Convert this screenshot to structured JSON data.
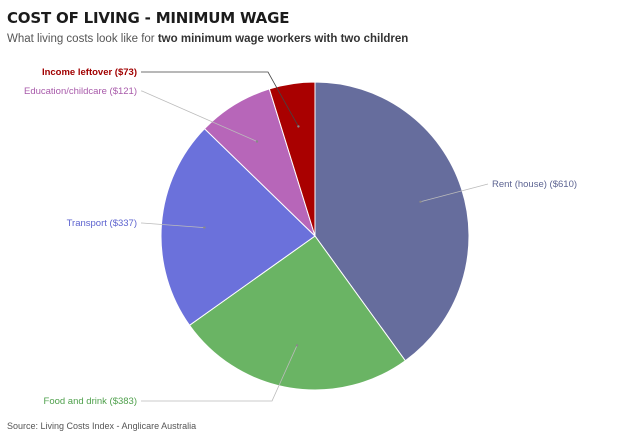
{
  "header": {
    "title": "COST OF LIVING - MINIMUM WAGE",
    "subtitle_plain": "What living costs look like for ",
    "subtitle_bold": "two minimum wage workers with two children"
  },
  "footer": {
    "source": "Source: Living Costs Index - Anglicare Australia"
  },
  "chart_data": {
    "type": "pie",
    "start_angle_deg": 0,
    "direction": "clockwise",
    "slices": [
      {
        "name": "Rent (house)",
        "value": 610,
        "label": "Rent (house) ($610)",
        "color": "#666d9d",
        "label_color": "#5d6492",
        "label_side": "right"
      },
      {
        "name": "Food and drink",
        "value": 383,
        "label": "Food and drink ($383)",
        "color": "#6ab464",
        "label_color": "#4fa04c",
        "label_side": "left"
      },
      {
        "name": "Transport",
        "value": 337,
        "label": "Transport ($337)",
        "color": "#6b71db",
        "label_color": "#5d63cf",
        "label_side": "left"
      },
      {
        "name": "Education/childcare",
        "value": 121,
        "label": "Education/childcare ($121)",
        "color": "#b766b9",
        "label_color": "#a85aaa",
        "label_side": "left"
      },
      {
        "name": "Income leftover",
        "value": 73,
        "label": "Income leftover ($73)",
        "color": "#a90000",
        "label_color": "#a10000",
        "label_side": "left"
      }
    ]
  }
}
